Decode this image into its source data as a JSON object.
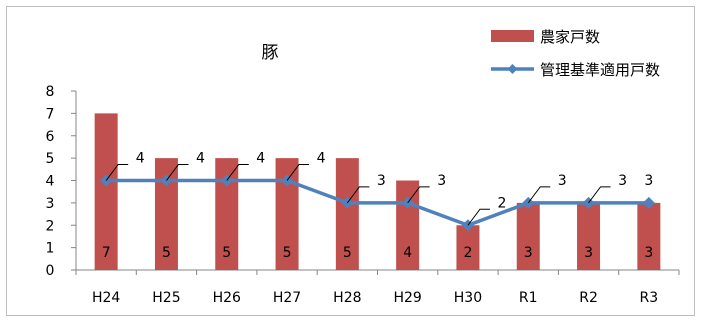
{
  "chart_data": {
    "type": "bar",
    "title": "豚",
    "categories": [
      "H24",
      "H25",
      "H26",
      "H27",
      "H28",
      "H29",
      "H30",
      "R1",
      "R2",
      "R3"
    ],
    "series": [
      {
        "name": "農家戸数",
        "kind": "bar",
        "color": "#c0504d",
        "values": [
          7,
          5,
          5,
          5,
          5,
          4,
          2,
          3,
          3,
          3
        ]
      },
      {
        "name": "管理基準適用戸数",
        "kind": "line",
        "color": "#4f81bd",
        "values": [
          4,
          4,
          4,
          4,
          3,
          3,
          2,
          3,
          3,
          3
        ]
      }
    ],
    "y_ticks": [
      "0",
      "1",
      "2",
      "3",
      "4",
      "5",
      "6",
      "7",
      "8"
    ],
    "ylim": [
      0,
      8
    ],
    "grid": false,
    "legend_position": "top-right"
  }
}
